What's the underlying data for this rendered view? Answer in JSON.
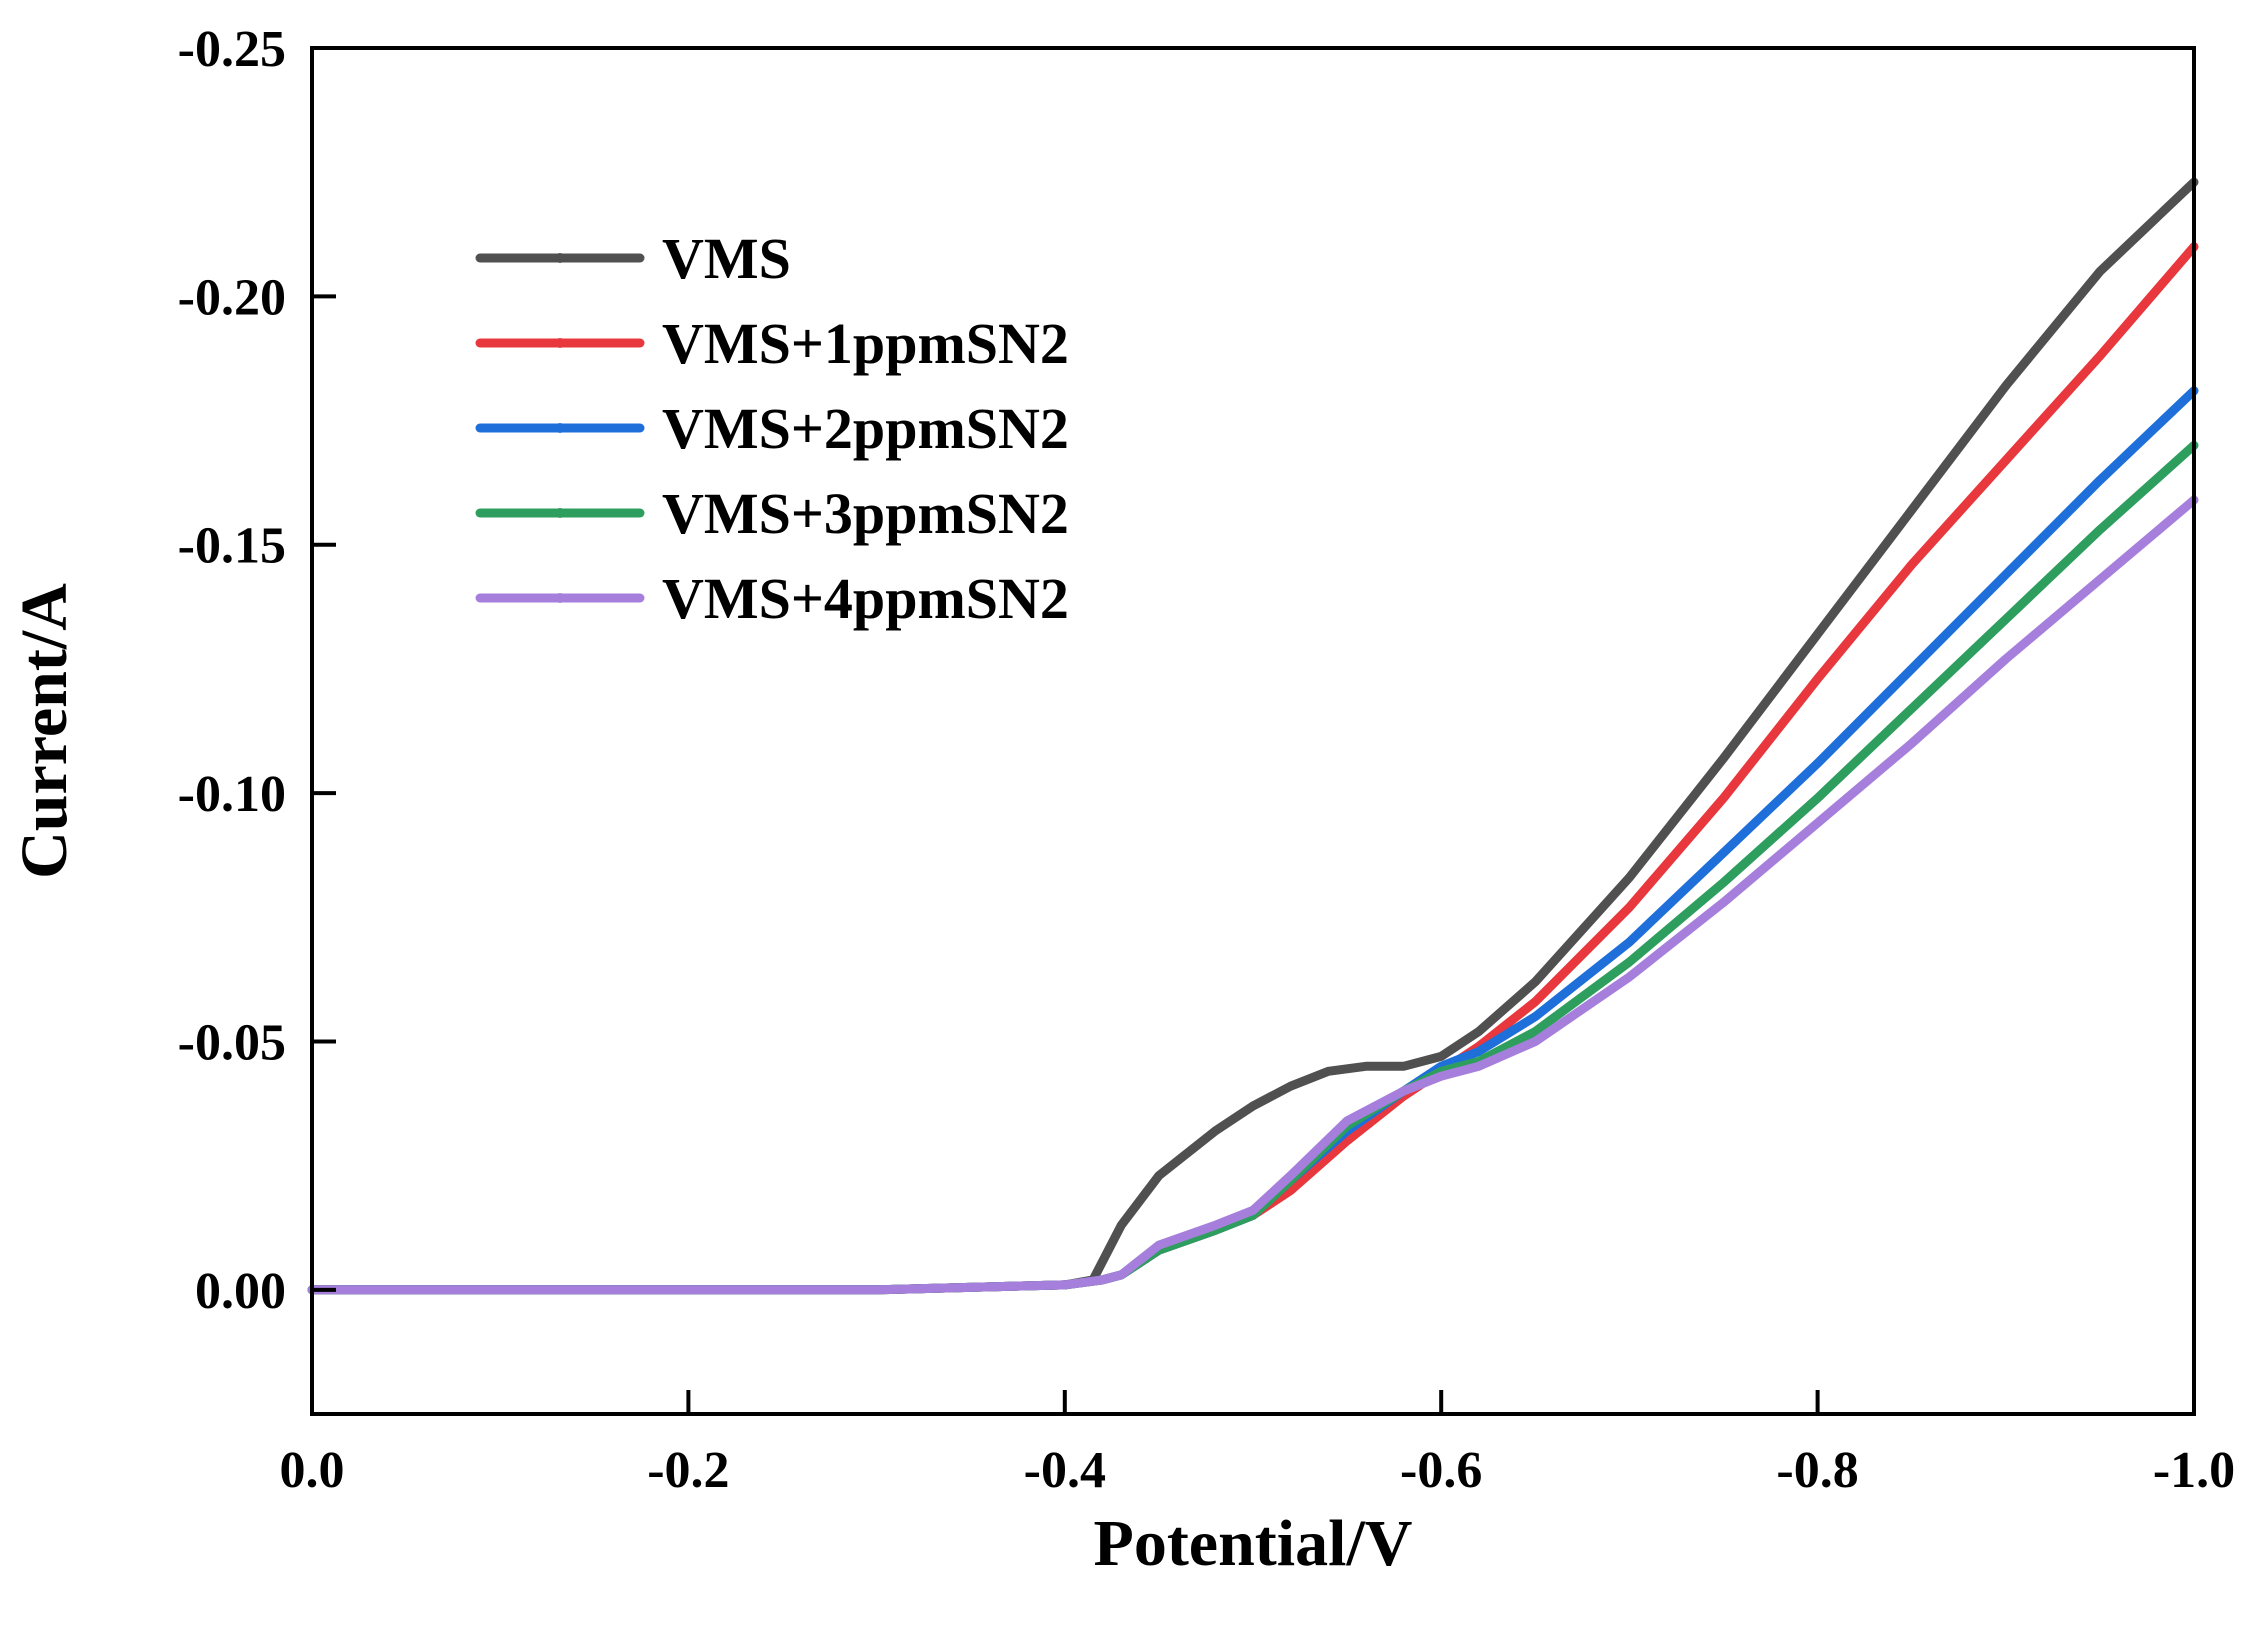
{
  "chart_data": {
    "type": "line",
    "title": "",
    "xlabel": "Potential/V",
    "ylabel": "Current/A",
    "xlim": [
      0.0,
      -1.0
    ],
    "ylim": [
      0.025,
      -0.25
    ],
    "xticks": [
      "0.0",
      "-0.2",
      "-0.4",
      "-0.6",
      "-0.8",
      "-1.0"
    ],
    "xtick_values": [
      0.0,
      -0.2,
      -0.4,
      -0.6,
      -0.8,
      -1.0
    ],
    "yticks": [
      "-0.25",
      "-0.20",
      "-0.15",
      "-0.10",
      "-0.05",
      "0.00"
    ],
    "ytick_values": [
      -0.25,
      -0.2,
      -0.15,
      -0.1,
      -0.05,
      0.0
    ],
    "grid": false,
    "legend_position": "upper-left",
    "series": [
      {
        "name": "VMS",
        "color": "#505050",
        "x": [
          0.0,
          -0.1,
          -0.2,
          -0.3,
          -0.4,
          -0.415,
          -0.43,
          -0.45,
          -0.48,
          -0.5,
          -0.52,
          -0.54,
          -0.56,
          -0.58,
          -0.6,
          -0.62,
          -0.65,
          -0.7,
          -0.75,
          -0.8,
          -0.85,
          -0.9,
          -0.95,
          -1.0
        ],
        "y": [
          0.0,
          0.0,
          0.0,
          0.0,
          -0.001,
          -0.002,
          -0.013,
          -0.023,
          -0.032,
          -0.037,
          -0.041,
          -0.044,
          -0.045,
          -0.045,
          -0.047,
          -0.052,
          -0.062,
          -0.083,
          -0.107,
          -0.132,
          -0.157,
          -0.182,
          -0.205,
          -0.223
        ]
      },
      {
        "name": "VMS+1ppmSN2",
        "color": "#e8383d",
        "x": [
          0.0,
          -0.1,
          -0.2,
          -0.3,
          -0.4,
          -0.42,
          -0.43,
          -0.45,
          -0.48,
          -0.5,
          -0.52,
          -0.55,
          -0.58,
          -0.6,
          -0.62,
          -0.65,
          -0.7,
          -0.75,
          -0.8,
          -0.85,
          -0.9,
          -0.95,
          -1.0
        ],
        "y": [
          0.0,
          0.0,
          0.0,
          0.0,
          -0.001,
          -0.002,
          -0.003,
          -0.008,
          -0.012,
          -0.015,
          -0.02,
          -0.03,
          -0.039,
          -0.044,
          -0.049,
          -0.058,
          -0.077,
          -0.099,
          -0.123,
          -0.146,
          -0.167,
          -0.188,
          -0.21
        ]
      },
      {
        "name": "VMS+2ppmSN2",
        "color": "#1e6fd9",
        "x": [
          0.0,
          -0.1,
          -0.2,
          -0.3,
          -0.4,
          -0.42,
          -0.43,
          -0.45,
          -0.48,
          -0.5,
          -0.52,
          -0.55,
          -0.58,
          -0.6,
          -0.62,
          -0.65,
          -0.7,
          -0.75,
          -0.8,
          -0.85,
          -0.9,
          -0.95,
          -1.0
        ],
        "y": [
          0.0,
          0.0,
          0.0,
          0.0,
          -0.001,
          -0.002,
          -0.003,
          -0.008,
          -0.012,
          -0.015,
          -0.022,
          -0.032,
          -0.04,
          -0.045,
          -0.048,
          -0.055,
          -0.07,
          -0.088,
          -0.106,
          -0.125,
          -0.144,
          -0.163,
          -0.181
        ]
      },
      {
        "name": "VMS+3ppmSN2",
        "color": "#2e9e5e",
        "x": [
          0.0,
          -0.1,
          -0.2,
          -0.3,
          -0.4,
          -0.42,
          -0.43,
          -0.45,
          -0.48,
          -0.5,
          -0.52,
          -0.55,
          -0.58,
          -0.6,
          -0.62,
          -0.65,
          -0.7,
          -0.75,
          -0.8,
          -0.85,
          -0.9,
          -0.95,
          -1.0
        ],
        "y": [
          0.0,
          0.0,
          0.0,
          0.0,
          -0.001,
          -0.002,
          -0.003,
          -0.008,
          -0.012,
          -0.015,
          -0.022,
          -0.033,
          -0.04,
          -0.044,
          -0.046,
          -0.052,
          -0.066,
          -0.082,
          -0.099,
          -0.117,
          -0.135,
          -0.153,
          -0.17
        ]
      },
      {
        "name": "VMS+4ppmSN2",
        "color": "#a67fdc",
        "x": [
          0.0,
          -0.1,
          -0.2,
          -0.3,
          -0.4,
          -0.42,
          -0.43,
          -0.45,
          -0.48,
          -0.5,
          -0.52,
          -0.55,
          -0.58,
          -0.6,
          -0.62,
          -0.65,
          -0.7,
          -0.75,
          -0.8,
          -0.85,
          -0.9,
          -0.95,
          -1.0
        ],
        "y": [
          0.0,
          0.0,
          0.0,
          0.0,
          -0.001,
          -0.002,
          -0.003,
          -0.009,
          -0.013,
          -0.016,
          -0.023,
          -0.034,
          -0.04,
          -0.043,
          -0.045,
          -0.05,
          -0.063,
          -0.078,
          -0.094,
          -0.11,
          -0.127,
          -0.143,
          -0.159
        ]
      }
    ]
  }
}
